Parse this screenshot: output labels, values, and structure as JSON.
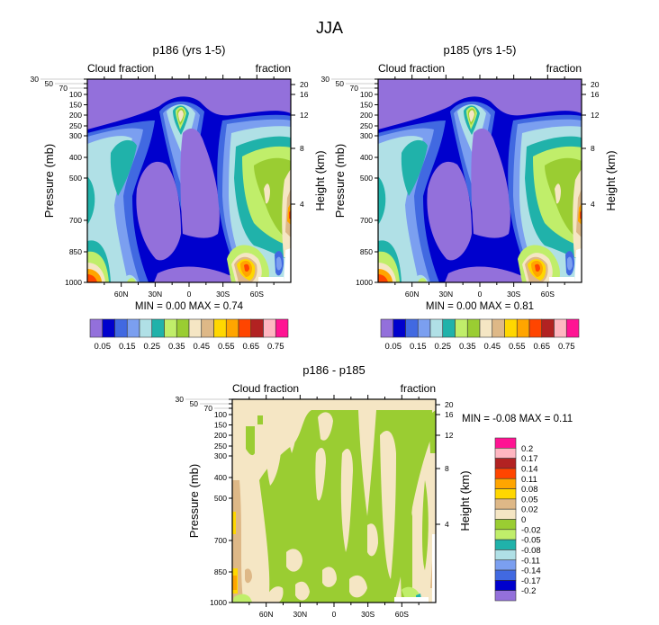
{
  "figure_title": "JJA",
  "chart_data": [
    {
      "type": "heatmap",
      "subtype": "filled-contour",
      "title": "p186 (yrs 1-5)",
      "left_label": "Cloud fraction",
      "right_label": "fraction",
      "xlabel": "",
      "ylabel": "Pressure (mb)",
      "ylabel_right": "Height (km)",
      "x_ticks": [
        "60N",
        "30N",
        "0",
        "30S",
        "60S"
      ],
      "x_tick_values": [
        60,
        30,
        0,
        -30,
        -60
      ],
      "xlim": [
        90,
        -90
      ],
      "y_ticks": [
        30,
        50,
        70,
        100,
        150,
        200,
        250,
        300,
        400,
        500,
        700,
        850,
        1000
      ],
      "ylim": [
        1000,
        30
      ],
      "y_right_ticks": [
        20,
        16,
        12,
        8,
        4
      ],
      "min_max_text": "MIN =   0.00  MAX =   0.74",
      "min": 0.0,
      "max": 0.74,
      "colorbar_levels": [
        "0.05",
        "0.15",
        "0.25",
        "0.35",
        "0.45",
        "0.55",
        "0.65",
        "0.75"
      ],
      "colorbar_orientation": "horizontal"
    },
    {
      "type": "heatmap",
      "subtype": "filled-contour",
      "title": "p185 (yrs 1-5)",
      "left_label": "Cloud fraction",
      "right_label": "fraction",
      "xlabel": "",
      "ylabel": "Pressure (mb)",
      "ylabel_right": "Height (km)",
      "x_ticks": [
        "60N",
        "30N",
        "0",
        "30S",
        "60S"
      ],
      "x_tick_values": [
        60,
        30,
        0,
        -30,
        -60
      ],
      "xlim": [
        90,
        -90
      ],
      "y_ticks": [
        30,
        50,
        70,
        100,
        150,
        200,
        250,
        300,
        400,
        500,
        700,
        850,
        1000
      ],
      "ylim": [
        1000,
        30
      ],
      "y_right_ticks": [
        20,
        16,
        12,
        8,
        4
      ],
      "min_max_text": "MIN =   0.00  MAX =   0.81",
      "min": 0.0,
      "max": 0.81,
      "colorbar_levels": [
        "0.05",
        "0.15",
        "0.25",
        "0.35",
        "0.45",
        "0.55",
        "0.65",
        "0.75"
      ],
      "colorbar_orientation": "horizontal"
    },
    {
      "type": "heatmap",
      "subtype": "filled-contour",
      "title": "p186 - p185",
      "left_label": "Cloud fraction",
      "right_label": "fraction",
      "xlabel": "",
      "ylabel": "Pressure (mb)",
      "ylabel_right": "Height (km)",
      "x_ticks": [
        "60N",
        "30N",
        "0",
        "30S",
        "60S"
      ],
      "x_tick_values": [
        60,
        30,
        0,
        -30,
        -60
      ],
      "xlim": [
        90,
        -90
      ],
      "y_ticks": [
        30,
        50,
        70,
        100,
        150,
        200,
        250,
        300,
        400,
        500,
        700,
        850,
        1000
      ],
      "ylim": [
        1000,
        30
      ],
      "y_right_ticks": [
        20,
        16,
        12,
        8,
        4
      ],
      "min_max_text": "MIN =  -0.08  MAX =   0.11",
      "min": -0.08,
      "max": 0.11,
      "colorbar_levels": [
        "0.2",
        "0.17",
        "0.14",
        "0.11",
        "0.08",
        "0.05",
        "0.02",
        "0",
        "-0.02",
        "-0.05",
        "-0.08",
        "-0.11",
        "-0.14",
        "-0.17",
        "-0.2"
      ],
      "colorbar_orientation": "vertical"
    }
  ],
  "colors": {
    "scale": [
      "#9370DB",
      "#0000CD",
      "#4169E1",
      "#7B9FF0",
      "#B0E0E6",
      "#20B2AA",
      "#C0EE6A",
      "#9ACD32",
      "#F5E6C4",
      "#DEB887",
      "#FFD700",
      "#FFA500",
      "#FF4500",
      "#B22222",
      "#FFB6C1",
      "#FF1493"
    ]
  }
}
